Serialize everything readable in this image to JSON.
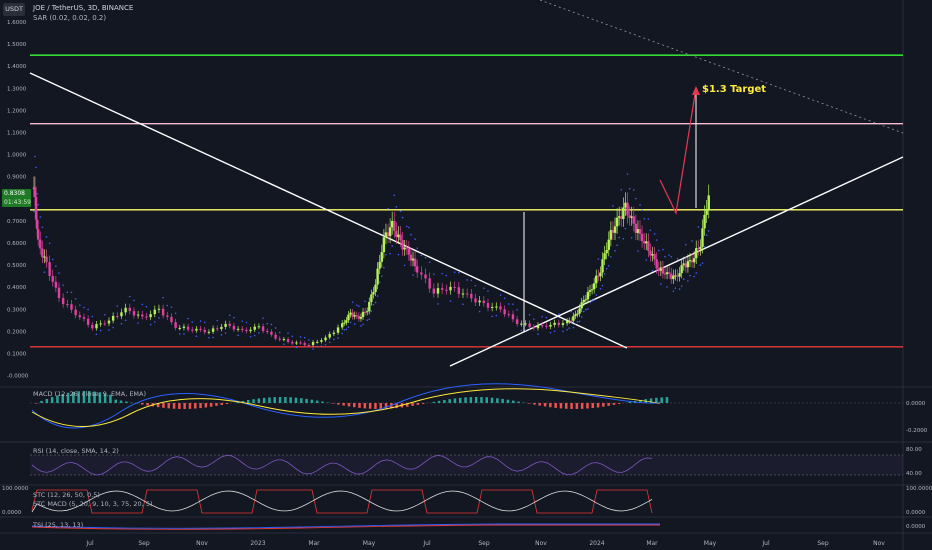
{
  "header": {
    "currency_button": "USDT",
    "title": "JOE / TetherUS, 3D, BINANCE",
    "indicator": "SAR (0.02, 0.02, 0.2)"
  },
  "price_tag": {
    "price": "0.8308",
    "countdown": "01:43:59"
  },
  "annotation": {
    "target_label": "$1.3 Target",
    "target_color": "#ffeb3b"
  },
  "colors": {
    "background": "#131722",
    "bull": "#b5f25a",
    "bear": "#e040a0",
    "sar": "#3f5bff",
    "support_line": "#e53935",
    "resistance_line": "#ffff66",
    "upper_line": "#f8bbd0",
    "top_line": "#33dd33"
  },
  "indicators": {
    "macd_label": "MACD (12, 26, close, 9, EMA, EMA)",
    "rsi_label": "RSI (14, close, SMA, 14, 2)",
    "stc_label": "STC (12, 26, 50, 0.5)",
    "stc_macd_label": "STC MACD (5, 20, 9, 10, 3, 75, 20, 5)",
    "tsi_label": "TSI (25, 13, 13)"
  },
  "chart_data": {
    "type": "candlestick",
    "y_ticks": [
      "1.6000",
      "1.5000",
      "1.4000",
      "1.3000",
      "1.2000",
      "1.1000",
      "1.0000",
      "0.9000",
      "0.7000",
      "0.6000",
      "0.5000",
      "0.4000",
      "0.3000",
      "0.2000",
      "0.1000",
      "-0.0000"
    ],
    "ylim": [
      -0.02,
      1.6
    ],
    "x_ticks": [
      "Jul",
      "Sep",
      "Nov",
      "2023",
      "Mar",
      "May",
      "Jul",
      "Sep",
      "Nov",
      "2024",
      "Mar",
      "May",
      "Jul",
      "Sep",
      "Nov"
    ],
    "price_series": [
      {
        "t": 0.0,
        "p": 0.85
      },
      {
        "t": 0.005,
        "p": 0.6
      },
      {
        "t": 0.015,
        "p": 0.5
      },
      {
        "t": 0.03,
        "p": 0.35
      },
      {
        "t": 0.05,
        "p": 0.28
      },
      {
        "t": 0.07,
        "p": 0.22
      },
      {
        "t": 0.09,
        "p": 0.25
      },
      {
        "t": 0.11,
        "p": 0.3
      },
      {
        "t": 0.13,
        "p": 0.26
      },
      {
        "t": 0.15,
        "p": 0.3
      },
      {
        "t": 0.17,
        "p": 0.22
      },
      {
        "t": 0.19,
        "p": 0.21
      },
      {
        "t": 0.21,
        "p": 0.2
      },
      {
        "t": 0.23,
        "p": 0.23
      },
      {
        "t": 0.25,
        "p": 0.2
      },
      {
        "t": 0.27,
        "p": 0.22
      },
      {
        "t": 0.29,
        "p": 0.17
      },
      {
        "t": 0.31,
        "p": 0.15
      },
      {
        "t": 0.33,
        "p": 0.14
      },
      {
        "t": 0.35,
        "p": 0.17
      },
      {
        "t": 0.37,
        "p": 0.23
      },
      {
        "t": 0.38,
        "p": 0.28
      },
      {
        "t": 0.39,
        "p": 0.26
      },
      {
        "t": 0.4,
        "p": 0.3
      },
      {
        "t": 0.41,
        "p": 0.42
      },
      {
        "t": 0.42,
        "p": 0.62
      },
      {
        "t": 0.43,
        "p": 0.68
      },
      {
        "t": 0.44,
        "p": 0.6
      },
      {
        "t": 0.45,
        "p": 0.55
      },
      {
        "t": 0.46,
        "p": 0.48
      },
      {
        "t": 0.48,
        "p": 0.38
      },
      {
        "t": 0.5,
        "p": 0.4
      },
      {
        "t": 0.52,
        "p": 0.36
      },
      {
        "t": 0.54,
        "p": 0.32
      },
      {
        "t": 0.56,
        "p": 0.3
      },
      {
        "t": 0.58,
        "p": 0.24
      },
      {
        "t": 0.6,
        "p": 0.22
      },
      {
        "t": 0.62,
        "p": 0.23
      },
      {
        "t": 0.64,
        "p": 0.24
      },
      {
        "t": 0.65,
        "p": 0.27
      },
      {
        "t": 0.66,
        "p": 0.34
      },
      {
        "t": 0.67,
        "p": 0.4
      },
      {
        "t": 0.68,
        "p": 0.48
      },
      {
        "t": 0.69,
        "p": 0.62
      },
      {
        "t": 0.7,
        "p": 0.7
      },
      {
        "t": 0.71,
        "p": 0.76
      },
      {
        "t": 0.72,
        "p": 0.68
      },
      {
        "t": 0.73,
        "p": 0.62
      },
      {
        "t": 0.74,
        "p": 0.56
      },
      {
        "t": 0.75,
        "p": 0.48
      },
      {
        "t": 0.76,
        "p": 0.46
      },
      {
        "t": 0.77,
        "p": 0.44
      },
      {
        "t": 0.78,
        "p": 0.5
      },
      {
        "t": 0.79,
        "p": 0.52
      },
      {
        "t": 0.8,
        "p": 0.6
      },
      {
        "t": 0.81,
        "p": 0.83
      }
    ]
  }
}
